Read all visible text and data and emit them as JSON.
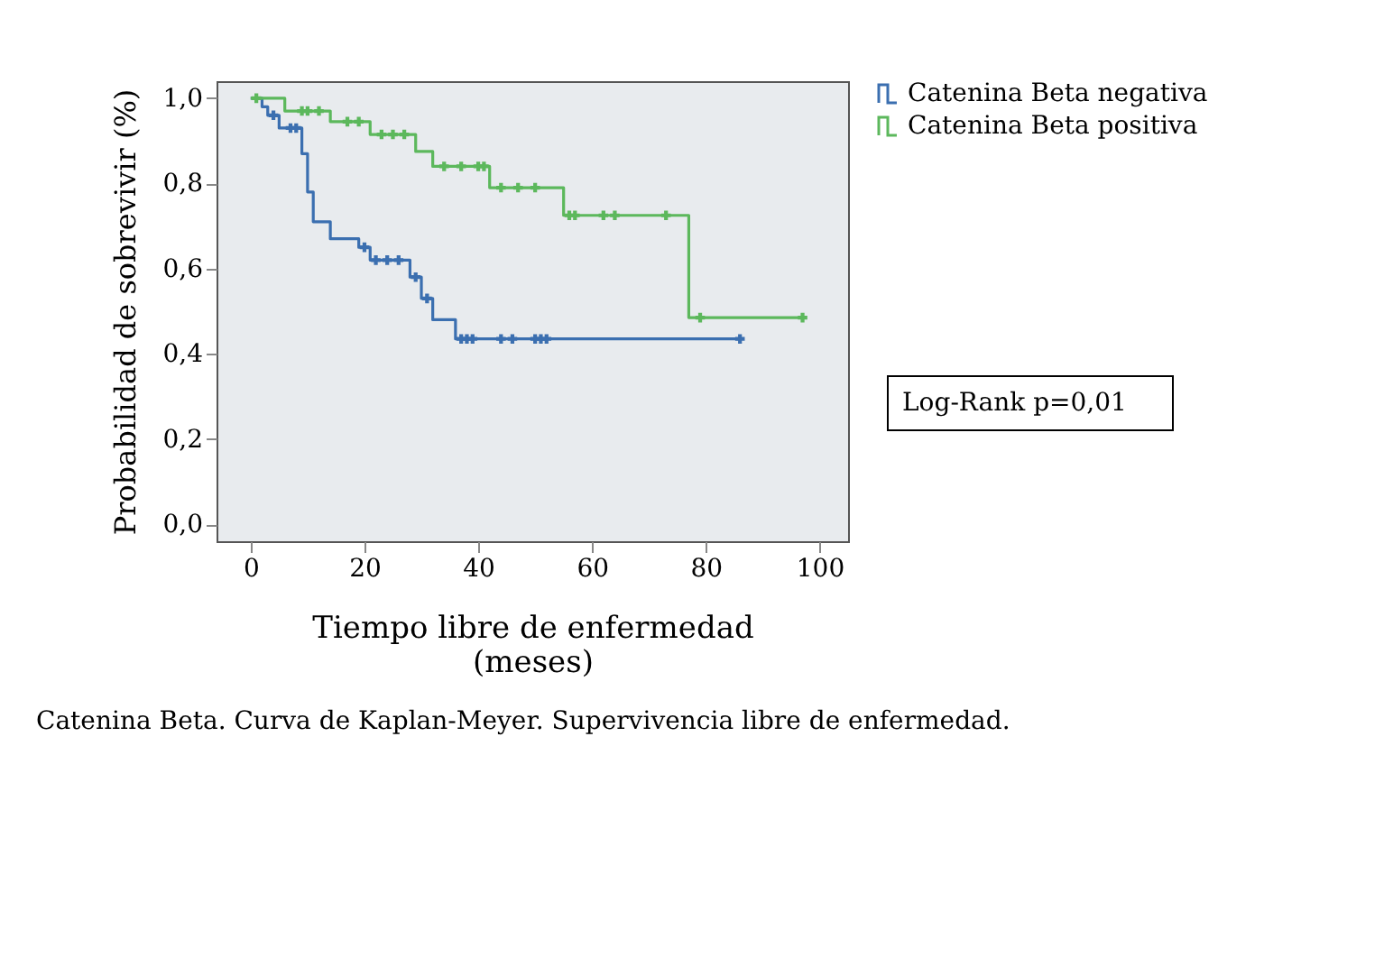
{
  "chart_data": {
    "type": "line",
    "xlabel": "Tiempo libre de enfermedad (meses)",
    "ylabel": "Probabilidad de sobrevivir (%)",
    "xlim": [
      -6,
      105
    ],
    "xticks": [
      0,
      20,
      40,
      60,
      80,
      100
    ],
    "ylim": [
      -0.04,
      1.04
    ],
    "yticks": [
      {
        "value": 0,
        "label": "0,0"
      },
      {
        "value": 0.2,
        "label": "0,2"
      },
      {
        "value": 0.4,
        "label": "0,4"
      },
      {
        "value": 0.6,
        "label": "0,6"
      },
      {
        "value": 0.8,
        "label": "0,8"
      },
      {
        "value": 1,
        "label": "1,0"
      }
    ],
    "grid": false,
    "legend": "right",
    "line_style": "solid",
    "series": [
      {
        "name": "Catenina Beta negativa",
        "color": "#3b6fb0",
        "x": [
          0,
          2,
          2,
          3,
          3,
          5,
          5,
          9,
          9,
          10,
          10,
          11,
          11,
          14,
          14,
          19,
          19,
          21,
          21,
          28,
          28,
          30,
          30,
          32,
          32,
          36,
          36,
          86
        ],
        "values": [
          1.0,
          1.0,
          0.98,
          0.98,
          0.96,
          0.96,
          0.93,
          0.93,
          0.87,
          0.87,
          0.78,
          0.78,
          0.71,
          0.71,
          0.67,
          0.67,
          0.65,
          0.65,
          0.62,
          0.62,
          0.58,
          0.58,
          0.53,
          0.53,
          0.48,
          0.48,
          0.435,
          0.435
        ]
      },
      {
        "name": "Catenina Beta positiva",
        "color": "#5cb85c",
        "x": [
          0,
          6,
          6,
          14,
          14,
          21,
          21,
          29,
          29,
          32,
          32,
          42,
          42,
          55,
          55,
          77,
          77,
          97
        ],
        "values": [
          1.0,
          1.0,
          0.97,
          0.97,
          0.945,
          0.945,
          0.915,
          0.915,
          0.875,
          0.875,
          0.84,
          0.84,
          0.79,
          0.79,
          0.725,
          0.725,
          0.485,
          0.485
        ]
      },
      {
        "type": "scatter",
        "marker": "cross",
        "color": "#3b6fb0",
        "x": [
          4,
          7,
          8,
          20,
          22,
          24,
          26,
          29,
          31,
          37,
          38,
          39,
          44,
          46,
          50,
          51,
          52,
          86
        ],
        "values": [
          0.96,
          0.93,
          0.93,
          0.65,
          0.62,
          0.62,
          0.62,
          0.58,
          0.53,
          0.435,
          0.435,
          0.435,
          0.435,
          0.435,
          0.435,
          0.435,
          0.435,
          0.435
        ]
      },
      {
        "type": "scatter",
        "marker": "cross",
        "color": "#5cb85c",
        "x": [
          1,
          9,
          10,
          12,
          17,
          19,
          23,
          25,
          27,
          34,
          37,
          40,
          41,
          44,
          47,
          50,
          56,
          57,
          62,
          64,
          73,
          79,
          97
        ],
        "values": [
          1.0,
          0.97,
          0.97,
          0.97,
          0.945,
          0.945,
          0.915,
          0.915,
          0.915,
          0.84,
          0.84,
          0.84,
          0.84,
          0.79,
          0.79,
          0.79,
          0.725,
          0.725,
          0.725,
          0.725,
          0.725,
          0.485,
          0.485
        ]
      }
    ],
    "annotations": [
      "Log-Rank p=0,01",
      "Catenina Beta. Curva de Kaplan-Meyer. Supervivencia libre de enfermedad."
    ]
  }
}
